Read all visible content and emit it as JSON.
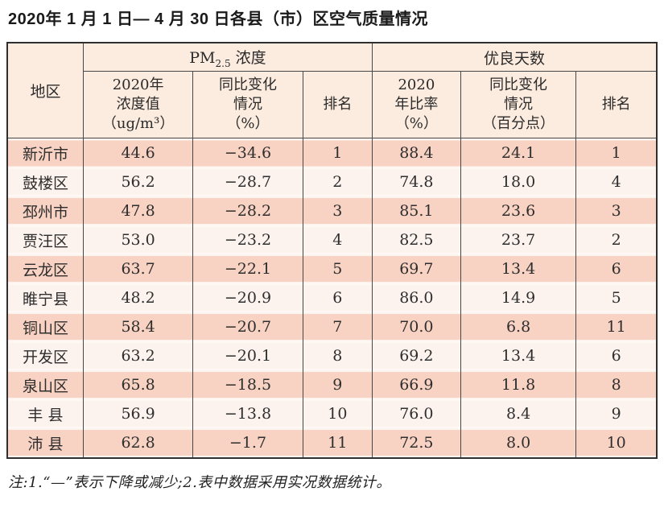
{
  "page": {
    "title": "2020年 1 月 1 日— 4 月 30 日各县（市）区空气质量情况",
    "note": "注:1.“—”表示下降或减少;2.表中数据采用实况数据统计。"
  },
  "table": {
    "region_header": "地区",
    "pm_group": {
      "prefix": "PM",
      "sub": "2.5",
      "suffix": " 浓度"
    },
    "days_group": "优良天数",
    "subheaders": {
      "pm_value": "2020年\n浓度值\n（ug/m³）",
      "pm_change": "同比变化\n情况\n（%）",
      "pm_rank": "排名",
      "days_ratio": "2020\n年比率\n（%）",
      "days_change": "同比变化\n情况\n（百分点）",
      "days_rank": "排名"
    },
    "columns": [
      "region",
      "pm_value",
      "pm_change",
      "pm_rank",
      "days_ratio",
      "days_change",
      "days_rank"
    ],
    "rows": [
      {
        "region": "新沂市",
        "pm_value": "44.6",
        "pm_change": "−34.6",
        "pm_rank": "1",
        "days_ratio": "88.4",
        "days_change": "24.1",
        "days_rank": "1"
      },
      {
        "region": "鼓楼区",
        "pm_value": "56.2",
        "pm_change": "−28.7",
        "pm_rank": "2",
        "days_ratio": "74.8",
        "days_change": "18.0",
        "days_rank": "4"
      },
      {
        "region": "邳州市",
        "pm_value": "47.8",
        "pm_change": "−28.2",
        "pm_rank": "3",
        "days_ratio": "85.1",
        "days_change": "23.6",
        "days_rank": "3"
      },
      {
        "region": "贾汪区",
        "pm_value": "53.0",
        "pm_change": "−23.2",
        "pm_rank": "4",
        "days_ratio": "82.5",
        "days_change": "23.7",
        "days_rank": "2"
      },
      {
        "region": "云龙区",
        "pm_value": "63.7",
        "pm_change": "−22.1",
        "pm_rank": "5",
        "days_ratio": "69.7",
        "days_change": "13.4",
        "days_rank": "6"
      },
      {
        "region": "睢宁县",
        "pm_value": "48.2",
        "pm_change": "−20.9",
        "pm_rank": "6",
        "days_ratio": "86.0",
        "days_change": "14.9",
        "days_rank": "5"
      },
      {
        "region": "铜山区",
        "pm_value": "58.4",
        "pm_change": "−20.7",
        "pm_rank": "7",
        "days_ratio": "70.0",
        "days_change": "6.8",
        "days_rank": "11"
      },
      {
        "region": "开发区",
        "pm_value": "63.2",
        "pm_change": "−20.1",
        "pm_rank": "8",
        "days_ratio": "69.2",
        "days_change": "13.4",
        "days_rank": "6"
      },
      {
        "region": "泉山区",
        "pm_value": "65.8",
        "pm_change": "−18.5",
        "pm_rank": "9",
        "days_ratio": "66.9",
        "days_change": "11.8",
        "days_rank": "8"
      },
      {
        "region": "丰 县",
        "pm_value": "56.9",
        "pm_change": "−13.8",
        "pm_rank": "10",
        "days_ratio": "76.0",
        "days_change": "8.4",
        "days_rank": "9"
      },
      {
        "region": "沛 县",
        "pm_value": "62.8",
        "pm_change": "−1.7",
        "pm_rank": "11",
        "days_ratio": "72.5",
        "days_change": "8.0",
        "days_rank": "10"
      }
    ],
    "colors": {
      "header_bg": "#fcebdf",
      "row_odd_bg": "#f8d2c2",
      "row_even_bg": "#fdf3ee",
      "border": "#2f2f2f"
    }
  }
}
